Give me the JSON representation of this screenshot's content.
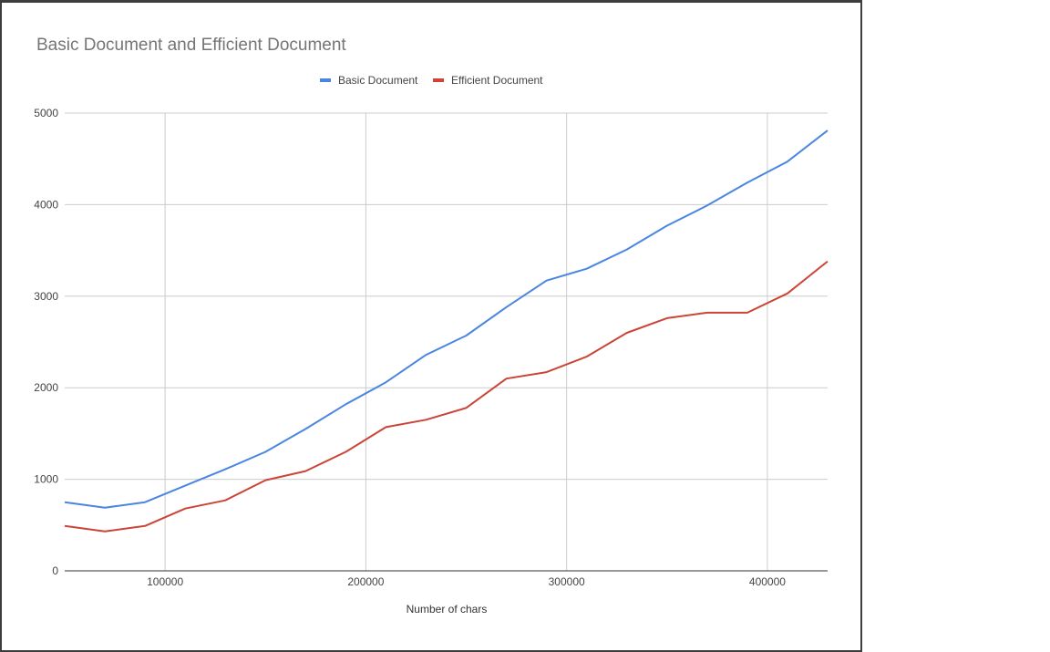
{
  "chart_data": {
    "type": "line",
    "title": "Basic Document and Efficient Document",
    "xlabel": "Number of chars",
    "ylabel": "",
    "xlim": [
      50000,
      430000
    ],
    "ylim": [
      0,
      5000
    ],
    "x_ticks": [
      100000,
      200000,
      300000,
      400000
    ],
    "x_tick_labels": [
      "100000",
      "200000",
      "300000",
      "400000"
    ],
    "y_ticks": [
      0,
      1000,
      2000,
      3000,
      4000,
      5000
    ],
    "y_tick_labels": [
      "0",
      "1000",
      "2000",
      "3000",
      "4000",
      "5000"
    ],
    "grid": true,
    "legend_position": "top",
    "x": [
      50000,
      70000,
      90000,
      110000,
      130000,
      150000,
      170000,
      190000,
      210000,
      230000,
      250000,
      270000,
      290000,
      310000,
      330000,
      350000,
      370000,
      390000,
      410000,
      430000
    ],
    "series": [
      {
        "name": "Basic Document",
        "color": "#4a86e0",
        "values": [
          750,
          690,
          750,
          930,
          1110,
          1300,
          1550,
          1820,
          2060,
          2360,
          2570,
          2880,
          3170,
          3300,
          3510,
          3770,
          3990,
          4240,
          4470,
          4810
        ]
      },
      {
        "name": "Efficient Document",
        "color": "#cc4436",
        "values": [
          490,
          430,
          490,
          680,
          770,
          990,
          1090,
          1300,
          1570,
          1650,
          1780,
          2100,
          2170,
          2340,
          2600,
          2760,
          2820,
          2820,
          3030,
          3380
        ]
      }
    ]
  }
}
